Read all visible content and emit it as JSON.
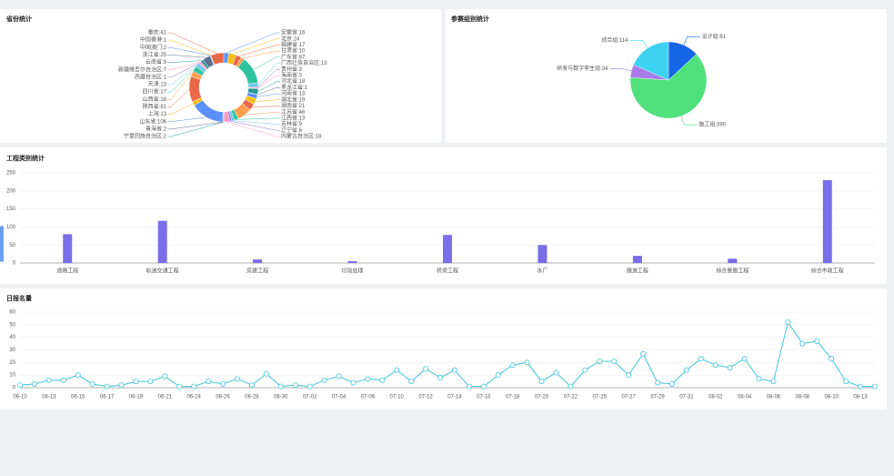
{
  "chart_data": [
    {
      "type": "donut",
      "title": "省份统计",
      "categories": [
        "安徽省",
        "北京",
        "福建省",
        "甘肃省",
        "广东省",
        "广西壮族自治区",
        "贵州省",
        "海南省",
        "河北省",
        "黑龙江省",
        "河南省",
        "湖北省",
        "湖南省",
        "江苏省",
        "江西省",
        "吉林省",
        "辽宁省",
        "内蒙古自治区",
        "宁夏回族自治区",
        "青海省",
        "山东省",
        "上海",
        "陕西省",
        "山西省",
        "四川省",
        "天津",
        "西藏自治区",
        "新疆维吾尔自治区",
        "云南省",
        "浙江省",
        "中国澳门",
        "中国香港",
        "重庆"
      ],
      "values": [
        16,
        24,
        17,
        10,
        87,
        13,
        3,
        3,
        18,
        1,
        13,
        19,
        21,
        46,
        13,
        9,
        6,
        18,
        2,
        2,
        106,
        13,
        81,
        18,
        17,
        13,
        1,
        7,
        9,
        25,
        2,
        1,
        41
      ],
      "value_labels": [
        "安徽省:16",
        "北京:24",
        "福建省:17",
        "甘肃省:10",
        "广东省:87",
        "广西壮族自治区:13",
        "贵州省:3",
        "海南省:3",
        "河北省:18",
        "黑龙江省:1",
        "河南省:13",
        "湖北省:19",
        "湖南省:21",
        "江苏省:46",
        "江西省:13",
        "吉林省:9",
        "辽宁省:6",
        "内蒙古自治区:18",
        "宁夏回族自治区:2",
        "青海省:2",
        "山东省:106",
        "上海:13",
        "陕西省:81",
        "山西省:18",
        "四川省:17",
        "天津:13",
        "西藏自治区:1",
        "新疆维吾尔自治区:7",
        "云南省:9",
        "浙江省:25",
        "中国澳门:2",
        "中国香港:1",
        "重庆:41"
      ],
      "colors": [
        "#5b8ff9",
        "#f6bd16",
        "#e8684a",
        "#ff9d4d",
        "#2fc4a0",
        "#6dc8ec",
        "#9270ca",
        "#ff99c3",
        "#269a99",
        "#5d7092"
      ]
    },
    {
      "type": "pie",
      "title": "参赛组别统计",
      "categories": [
        "设计组",
        "施工组",
        "研发与数字孪生组",
        "综合组"
      ],
      "values": [
        81,
        390,
        34,
        114
      ],
      "value_labels": [
        "设计组:81",
        "施工组:390",
        "研发与数字孪生组:34",
        "综合组:114"
      ],
      "colors": [
        "#1565e6",
        "#50e07c",
        "#a77be8",
        "#3ed2f2"
      ]
    },
    {
      "type": "bar",
      "title": "工程类别统计",
      "categories": [
        "道路工程",
        "轨道交通工程",
        "房建工程",
        "垃圾处理",
        "桥梁工程",
        "水厂",
        "隧道工程",
        "综合管廊工程",
        "综合市政工程"
      ],
      "values": [
        80,
        117,
        10,
        5,
        78,
        50,
        20,
        12,
        230
      ],
      "color": "#7b6ee8",
      "ylim": [
        0,
        250
      ],
      "yticks": [
        0,
        50,
        100,
        150,
        200,
        250
      ],
      "grid": true
    },
    {
      "type": "line",
      "title": "日报名量",
      "categories": [
        "06-10",
        null,
        "06-13",
        null,
        "06-15",
        null,
        "06-17",
        null,
        "06-19",
        null,
        "06-21",
        null,
        "06-24",
        null,
        "06-26",
        null,
        "06-28",
        null,
        "06-30",
        null,
        "07-02",
        null,
        "07-04",
        null,
        "07-06",
        null,
        "07-10",
        null,
        "07-12",
        null,
        "07-14",
        null,
        "07-16",
        null,
        "07-18",
        null,
        "07-20",
        null,
        "07-22",
        null,
        "07-25",
        null,
        "07-27",
        null,
        "07-29",
        null,
        "07-31",
        null,
        "08-02",
        null,
        "08-04",
        null,
        "08-06",
        null,
        "08-08",
        null,
        "08-10",
        null,
        "08-13",
        null
      ],
      "values": [
        2,
        3,
        6,
        6,
        10,
        3,
        1,
        2,
        5,
        5,
        9,
        1,
        1,
        5,
        3,
        7,
        2,
        11,
        1,
        2,
        1,
        6,
        9,
        4,
        7,
        6,
        14,
        5,
        15,
        8,
        14,
        1,
        1,
        10,
        18,
        20,
        5,
        12,
        1,
        14,
        21,
        21,
        10,
        27,
        4,
        3,
        14,
        23,
        18,
        16,
        23,
        7,
        5,
        52,
        35,
        37,
        23,
        5,
        1,
        1
      ],
      "color": "#3fc4dc",
      "ylim": [
        0,
        60
      ],
      "yticks": [
        0,
        10,
        20,
        30,
        40,
        50,
        60
      ],
      "grid": true
    }
  ]
}
